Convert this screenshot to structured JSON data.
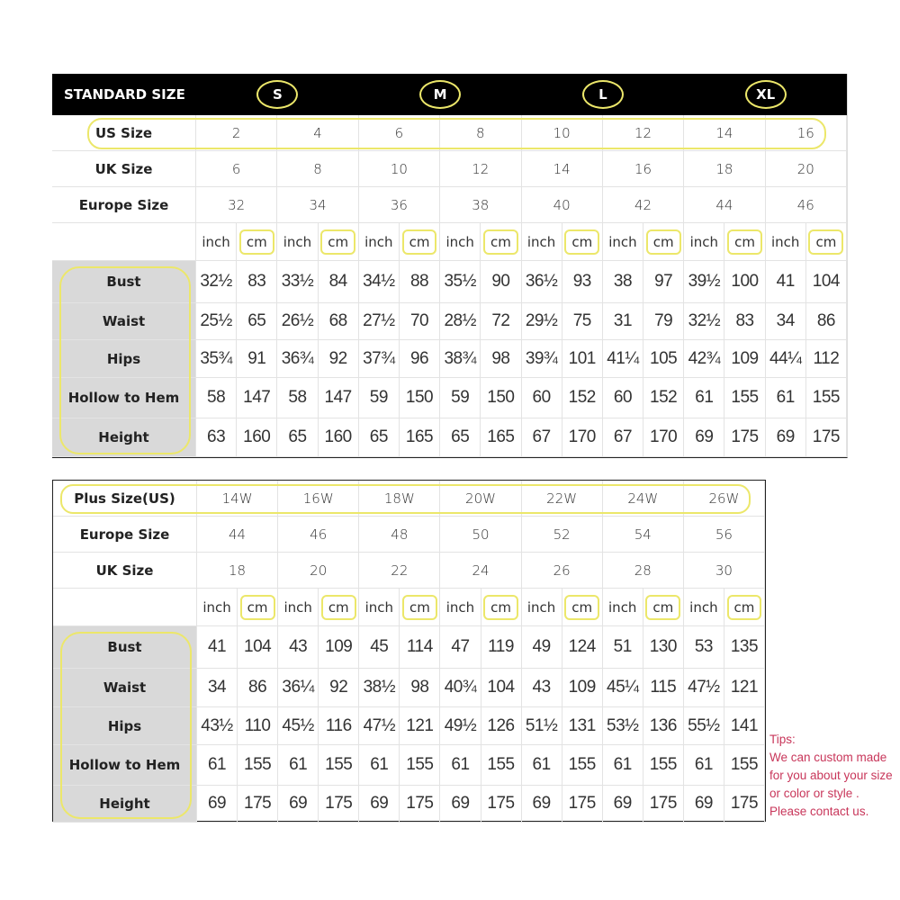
{
  "standard": {
    "title": "STANDARD SIZE",
    "size_letters": [
      "S",
      "M",
      "L",
      "XL"
    ],
    "header_rows": [
      {
        "label": "US Size",
        "values": [
          "2",
          "4",
          "6",
          "8",
          "10",
          "12",
          "14",
          "16"
        ]
      },
      {
        "label": "UK Size",
        "values": [
          "6",
          "8",
          "10",
          "12",
          "14",
          "16",
          "18",
          "20"
        ]
      },
      {
        "label": "Europe Size",
        "values": [
          "32",
          "34",
          "36",
          "38",
          "40",
          "42",
          "44",
          "46"
        ]
      }
    ],
    "units": [
      "inch",
      "cm"
    ],
    "measurements": [
      {
        "label": "Bust",
        "values": [
          "32½",
          "83",
          "33½",
          "84",
          "34½",
          "88",
          "35½",
          "90",
          "36½",
          "93",
          "38",
          "97",
          "39½",
          "100",
          "41",
          "104"
        ]
      },
      {
        "label": "Waist",
        "values": [
          "25½",
          "65",
          "26½",
          "68",
          "27½",
          "70",
          "28½",
          "72",
          "29½",
          "75",
          "31",
          "79",
          "32½",
          "83",
          "34",
          "86"
        ]
      },
      {
        "label": "Hips",
        "values": [
          "35¾",
          "91",
          "36¾",
          "92",
          "37¾",
          "96",
          "38¾",
          "98",
          "39¾",
          "101",
          "41¼",
          "105",
          "42¾",
          "109",
          "44¼",
          "112"
        ]
      },
      {
        "label": "Hollow to Hem",
        "values": [
          "58",
          "147",
          "58",
          "147",
          "59",
          "150",
          "59",
          "150",
          "60",
          "152",
          "60",
          "152",
          "61",
          "155",
          "61",
          "155"
        ]
      },
      {
        "label": "Height",
        "values": [
          "63",
          "160",
          "65",
          "160",
          "65",
          "165",
          "65",
          "165",
          "67",
          "170",
          "67",
          "170",
          "69",
          "175",
          "69",
          "175"
        ]
      }
    ]
  },
  "plus": {
    "header_rows": [
      {
        "label": "Plus Size(US)",
        "values": [
          "14W",
          "16W",
          "18W",
          "20W",
          "22W",
          "24W",
          "26W"
        ]
      },
      {
        "label": "Europe Size",
        "values": [
          "44",
          "46",
          "48",
          "50",
          "52",
          "54",
          "56"
        ]
      },
      {
        "label": "UK Size",
        "values": [
          "18",
          "20",
          "22",
          "24",
          "26",
          "28",
          "30"
        ]
      }
    ],
    "units": [
      "inch",
      "cm"
    ],
    "measurements": [
      {
        "label": "Bust",
        "values": [
          "41",
          "104",
          "43",
          "109",
          "45",
          "114",
          "47",
          "119",
          "49",
          "124",
          "51",
          "130",
          "53",
          "135"
        ]
      },
      {
        "label": "Waist",
        "values": [
          "34",
          "86",
          "36¼",
          "92",
          "38½",
          "98",
          "40¾",
          "104",
          "43",
          "109",
          "45¼",
          "115",
          "47½",
          "121"
        ]
      },
      {
        "label": "Hips",
        "values": [
          "43½",
          "110",
          "45½",
          "116",
          "47½",
          "121",
          "49½",
          "126",
          "51½",
          "131",
          "53½",
          "136",
          "55½",
          "141"
        ]
      },
      {
        "label": "Hollow to Hem",
        "values": [
          "61",
          "155",
          "61",
          "155",
          "61",
          "155",
          "61",
          "155",
          "61",
          "155",
          "61",
          "155",
          "61",
          "155"
        ]
      },
      {
        "label": "Height",
        "values": [
          "69",
          "175",
          "69",
          "175",
          "69",
          "175",
          "69",
          "175",
          "69",
          "175",
          "69",
          "175",
          "69",
          "175"
        ]
      }
    ]
  },
  "tips": [
    "Tips:",
    "We can custom made",
    "for you about your size",
    "or color or style .",
    "Please contact us."
  ],
  "colors": {
    "highlight": "#ece76a",
    "label_bg": "#d9d9d9",
    "header_bg": "#000000",
    "tips": "#c8365a"
  }
}
